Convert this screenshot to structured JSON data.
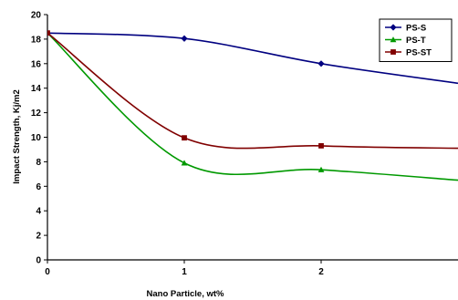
{
  "chart_data": {
    "type": "line",
    "title": "",
    "xlabel": "Nano Particle, wt%",
    "ylabel": "Impact Strength, Kj/m2",
    "xlim": [
      0,
      3
    ],
    "ylim": [
      0,
      20
    ],
    "x_ticks": [
      "0",
      "1",
      "2"
    ],
    "y_ticks": [
      "0",
      "2",
      "4",
      "6",
      "8",
      "10",
      "12",
      "14",
      "16",
      "18",
      "20"
    ],
    "grid": false,
    "legend_position": "top-right",
    "series": [
      {
        "name": "PS-S",
        "color": "#000080",
        "marker": "diamond",
        "x": [
          0,
          1,
          2,
          3
        ],
        "y": [
          18.5,
          18.05,
          16.0,
          14.4
        ]
      },
      {
        "name": "PS-T",
        "color": "#009900",
        "marker": "triangle",
        "x": [
          0,
          1,
          2,
          3
        ],
        "y": [
          18.5,
          7.9,
          7.35,
          6.5
        ]
      },
      {
        "name": "PS-ST",
        "color": "#800000",
        "marker": "square",
        "x": [
          0,
          1,
          2,
          3
        ],
        "y": [
          18.5,
          9.95,
          9.3,
          9.1
        ]
      }
    ]
  }
}
